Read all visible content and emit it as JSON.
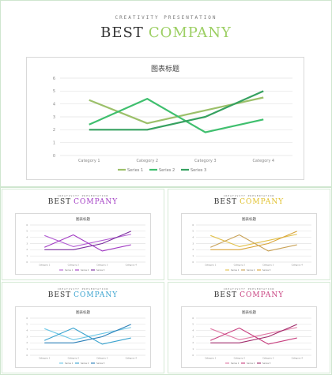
{
  "colors": {
    "frame": "#cfe6cf",
    "title_dark": "#333333"
  },
  "main": {
    "caption": "CREATIVITY PRESENTATION",
    "title_word1": "BEST",
    "title_word2": "COMPANY",
    "accent": "#9ccf63",
    "series_colors": [
      "#9cc06a",
      "#3fbf6e",
      "#36a160"
    ]
  },
  "thumbs": [
    {
      "caption": "CREATIVITY PRESENTATION",
      "title_word1": "BEST",
      "title_word2": "COMPANY",
      "accent": "#a23cc4",
      "series_colors": [
        "#b35fd3",
        "#a23cc4",
        "#7a2d9e"
      ]
    },
    {
      "caption": "CREATIVITY PRESENTATION",
      "title_word1": "BEST",
      "title_word2": "COMPANY",
      "accent": "#e0c02b",
      "series_colors": [
        "#e2c14c",
        "#c9a257",
        "#d9a53a"
      ]
    },
    {
      "caption": "CREATIVITY PRESENTATION",
      "title_word1": "BEST",
      "title_word2": "COMPANY",
      "accent": "#3aa3cf",
      "series_colors": [
        "#6cc7e6",
        "#3aa3cf",
        "#2b7fb8"
      ]
    },
    {
      "caption": "CREATIVITY PRESENTATION",
      "title_word1": "BEST",
      "title_word2": "COMPANY",
      "accent": "#c8407f",
      "series_colors": [
        "#e07aa5",
        "#c8407f",
        "#a02a6a"
      ]
    }
  ],
  "chart_data": {
    "type": "line",
    "title": "图表标题",
    "categories": [
      "Category 1",
      "Category 2",
      "Category 3",
      "Category 4"
    ],
    "ylim": [
      0,
      6
    ],
    "yticks": [
      0,
      1,
      2,
      3,
      4,
      5,
      6
    ],
    "grid": true,
    "legend": "bottom",
    "series": [
      {
        "name": "Series 1",
        "values": [
          4.3,
          2.5,
          3.5,
          4.5
        ]
      },
      {
        "name": "Series 2",
        "values": [
          2.4,
          4.4,
          1.8,
          2.8
        ]
      },
      {
        "name": "Series 3",
        "values": [
          2.0,
          2.0,
          3.0,
          5.0
        ]
      }
    ]
  }
}
